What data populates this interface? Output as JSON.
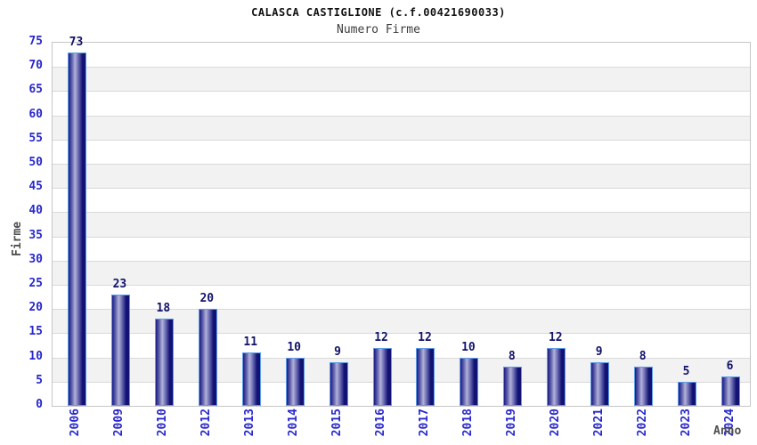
{
  "header": {
    "title": "CALASCA CASTIGLIONE (c.f.00421690033)",
    "subtitle": "Numero Firme"
  },
  "chart_data": {
    "type": "bar",
    "title": "CALASCA CASTIGLIONE (c.f.00421690033)",
    "subtitle": "Numero Firme",
    "xlabel": "Anno",
    "ylabel": "Firme",
    "categories": [
      "2006",
      "2009",
      "2010",
      "2012",
      "2013",
      "2014",
      "2015",
      "2016",
      "2017",
      "2018",
      "2019",
      "2020",
      "2021",
      "2022",
      "2023",
      "2024"
    ],
    "values": [
      73,
      23,
      18,
      20,
      11,
      10,
      9,
      12,
      12,
      10,
      8,
      12,
      9,
      8,
      5,
      6
    ],
    "ylim": [
      0,
      75
    ],
    "ytick_step": 5,
    "grid": true,
    "legend": "none",
    "colors": {
      "tick_label": "#2828cc",
      "value_label": "#12126a",
      "axis_title": "#4f4f4f",
      "title": "#111111",
      "subtitle": "#3d3d3d",
      "band_alt": "#f2f2f2",
      "band_main": "#ffffff",
      "gridline": "#d9d9d9",
      "plot_border": "#c6c6c6",
      "bar_border": "#5e9ce6",
      "bar_dark": "#1b1b82",
      "bar_mid": "#6a6ab2",
      "bar_light": "#b2b2da",
      "bar_dark2": "#121274"
    }
  }
}
